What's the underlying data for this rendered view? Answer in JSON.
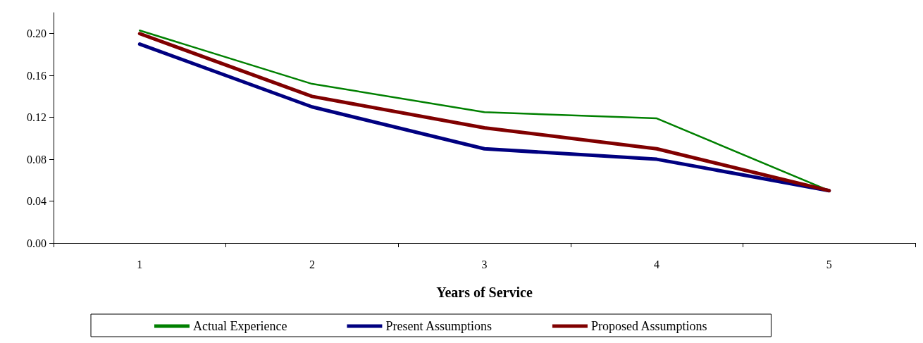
{
  "chart_data": {
    "type": "line",
    "xlabel": "Years of Service",
    "categories": [
      "1",
      "2",
      "3",
      "4",
      "5"
    ],
    "series": [
      {
        "name": "Actual Experience",
        "color": "#008000",
        "values": [
          0.203,
          0.152,
          0.125,
          0.119,
          0.05
        ]
      },
      {
        "name": "Present Assumptions",
        "color": "#000080",
        "values": [
          0.19,
          0.13,
          0.09,
          0.08,
          0.05
        ]
      },
      {
        "name": "Proposed Assumptions",
        "color": "#800000",
        "values": [
          0.2,
          0.14,
          0.11,
          0.09,
          0.05
        ]
      }
    ],
    "ylim": [
      0,
      0.22
    ],
    "yticks": [
      {
        "value": 0,
        "label": "0.00"
      },
      0.04,
      0.08,
      0.12,
      0.16,
      {
        "value": 0.2,
        "label": "0.20"
      }
    ],
    "grid": false,
    "legend": "bottom",
    "marker": "none",
    "line_style": "solid"
  }
}
